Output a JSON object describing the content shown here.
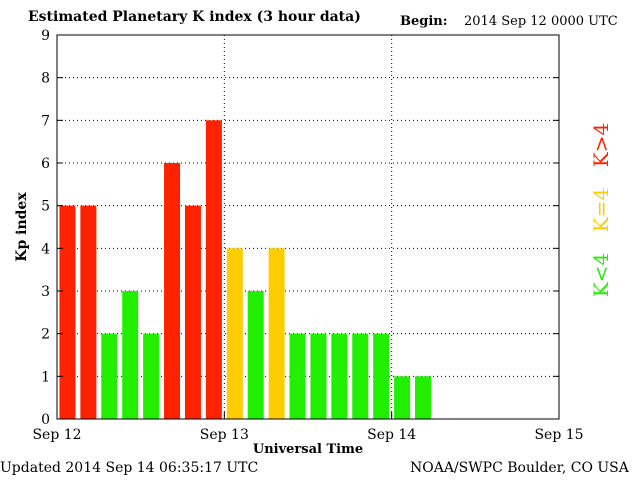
{
  "header": {
    "title": "Estimated Planetary K index (3 hour data)",
    "begin_label": "Begin:",
    "begin_value": "2014 Sep 12 0000 UTC"
  },
  "footer": {
    "updated": "Updated 2014 Sep 14 06:35:17 UTC",
    "credit": "NOAA/SWPC Boulder, CO USA"
  },
  "legend": [
    {
      "label": "K<4",
      "color": "#22ee00"
    },
    {
      "label": "K=4",
      "color": "#ffcc00"
    },
    {
      "label": "K>4",
      "color": "#ff2200"
    }
  ],
  "chart_data": {
    "type": "bar",
    "title": "Estimated Planetary K index (3 hour data)",
    "xlabel": "Universal Time",
    "ylabel": "Kp index",
    "ylim": [
      0,
      9
    ],
    "yticks": [
      0,
      1,
      2,
      3,
      4,
      5,
      6,
      7,
      8,
      9
    ],
    "xticks": [
      "Sep 12",
      "Sep 13",
      "Sep 14",
      "Sep 15"
    ],
    "interval_hours": 3,
    "grid": true,
    "legend_position": "right",
    "values": [
      5,
      5,
      2,
      3,
      2,
      6,
      5,
      7,
      4,
      3,
      4,
      2,
      2,
      2,
      2,
      2,
      1,
      1
    ],
    "colors": {
      "low": "#22ee00",
      "equal": "#ffcc00",
      "high": "#ff2200"
    }
  }
}
